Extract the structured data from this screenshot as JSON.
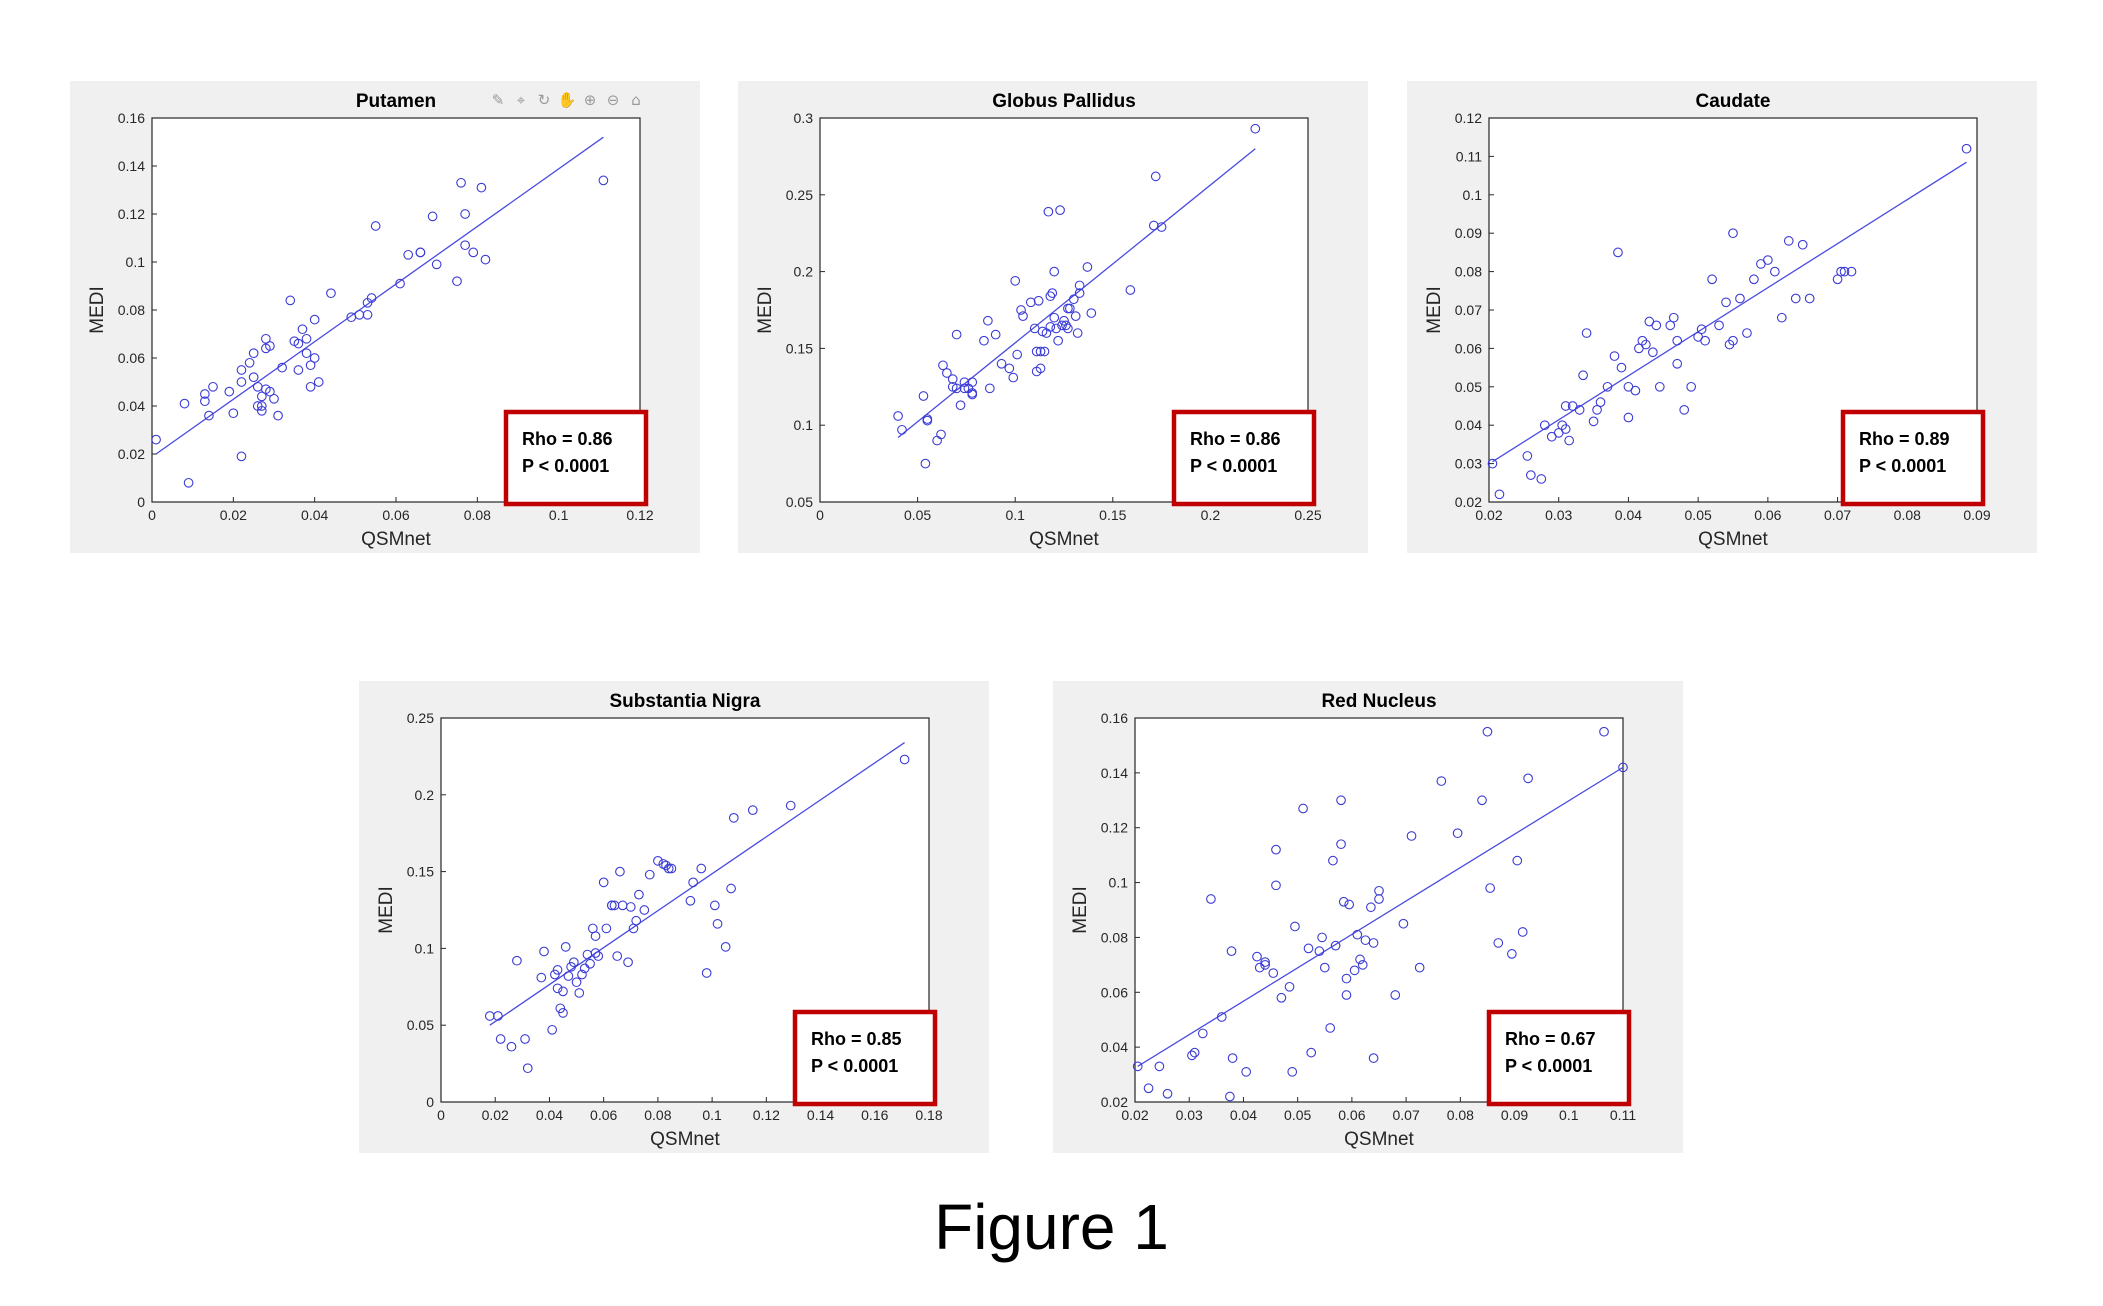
{
  "colors": {
    "points": "#3b3bd6",
    "fit_line": "#4a4ae0",
    "stat_box_border": "#c00000",
    "panel_background": "#f0f0f0"
  },
  "figure_caption": "Figure 1",
  "toolbar_icons": [
    "brush-icon",
    "data-cursor-icon",
    "rotate-icon",
    "pan-icon",
    "zoom-in-icon",
    "zoom-out-icon",
    "home-icon"
  ],
  "chart_data": [
    {
      "type": "scatter",
      "title": "Putamen",
      "xlabel": "QSMnet",
      "ylabel": "MEDI",
      "xlim": [
        0,
        0.12
      ],
      "ylim": [
        0,
        0.16
      ],
      "xticks": [
        "0",
        "0.02",
        "0.04",
        "0.06",
        "0.08",
        "0.1",
        "0.12"
      ],
      "yticks": [
        "0",
        "0.02",
        "0.04",
        "0.06",
        "0.08",
        "0.1",
        "0.12",
        "0.14",
        "0.16"
      ],
      "grid": false,
      "stats": {
        "rho": "Rho = 0.86",
        "p": "P < 0.0001"
      },
      "fit": {
        "x": [
          0.001,
          0.111
        ],
        "y": [
          0.02,
          0.152
        ]
      },
      "points": {
        "x": [
          0.001,
          0.009,
          0.008,
          0.013,
          0.013,
          0.015,
          0.014,
          0.019,
          0.02,
          0.022,
          0.022,
          0.024,
          0.025,
          0.025,
          0.026,
          0.026,
          0.027,
          0.027,
          0.027,
          0.028,
          0.028,
          0.028,
          0.029,
          0.029,
          0.03,
          0.031,
          0.022,
          0.032,
          0.034,
          0.035,
          0.036,
          0.036,
          0.037,
          0.038,
          0.038,
          0.039,
          0.039,
          0.04,
          0.04,
          0.041,
          0.044,
          0.049,
          0.051,
          0.053,
          0.053,
          0.054,
          0.055,
          0.061,
          0.063,
          0.066,
          0.066,
          0.069,
          0.07,
          0.075,
          0.076,
          0.077,
          0.077,
          0.079,
          0.081,
          0.082,
          0.111
        ],
        "y": [
          0.026,
          0.008,
          0.041,
          0.042,
          0.045,
          0.048,
          0.036,
          0.046,
          0.037,
          0.05,
          0.055,
          0.058,
          0.062,
          0.052,
          0.048,
          0.04,
          0.038,
          0.04,
          0.044,
          0.047,
          0.064,
          0.068,
          0.065,
          0.046,
          0.043,
          0.036,
          0.019,
          0.056,
          0.084,
          0.067,
          0.066,
          0.055,
          0.072,
          0.062,
          0.068,
          0.057,
          0.048,
          0.076,
          0.06,
          0.05,
          0.087,
          0.077,
          0.078,
          0.083,
          0.078,
          0.085,
          0.115,
          0.091,
          0.103,
          0.104,
          0.104,
          0.119,
          0.099,
          0.092,
          0.133,
          0.12,
          0.107,
          0.104,
          0.131,
          0.101,
          0.134
        ]
      }
    },
    {
      "type": "scatter",
      "title": "Globus Pallidus",
      "xlabel": "QSMnet",
      "ylabel": "MEDI",
      "xlim": [
        0,
        0.25
      ],
      "ylim": [
        0.05,
        0.3
      ],
      "xticks": [
        "0",
        "0.05",
        "0.1",
        "0.15",
        "0.2",
        "0.25"
      ],
      "yticks": [
        "0.05",
        "0.1",
        "0.15",
        "0.2",
        "0.25",
        "0.3"
      ],
      "grid": false,
      "stats": {
        "rho": "Rho = 0.86",
        "p": "P < 0.0001"
      },
      "fit": {
        "x": [
          0.04,
          0.223
        ],
        "y": [
          0.092,
          0.28
        ]
      },
      "points": {
        "x": [
          0.04,
          0.042,
          0.053,
          0.055,
          0.055,
          0.054,
          0.06,
          0.062,
          0.063,
          0.065,
          0.068,
          0.068,
          0.07,
          0.07,
          0.072,
          0.074,
          0.074,
          0.076,
          0.078,
          0.078,
          0.078,
          0.084,
          0.086,
          0.087,
          0.09,
          0.093,
          0.097,
          0.099,
          0.1,
          0.101,
          0.103,
          0.104,
          0.108,
          0.11,
          0.111,
          0.111,
          0.112,
          0.113,
          0.113,
          0.114,
          0.115,
          0.116,
          0.117,
          0.118,
          0.118,
          0.119,
          0.12,
          0.12,
          0.121,
          0.122,
          0.123,
          0.124,
          0.125,
          0.126,
          0.127,
          0.127,
          0.128,
          0.13,
          0.131,
          0.132,
          0.133,
          0.133,
          0.137,
          0.139,
          0.159,
          0.171,
          0.172,
          0.175,
          0.223
        ],
        "y": [
          0.106,
          0.097,
          0.119,
          0.104,
          0.103,
          0.075,
          0.09,
          0.094,
          0.139,
          0.134,
          0.125,
          0.13,
          0.124,
          0.159,
          0.113,
          0.128,
          0.124,
          0.124,
          0.128,
          0.12,
          0.121,
          0.155,
          0.168,
          0.124,
          0.159,
          0.14,
          0.137,
          0.131,
          0.194,
          0.146,
          0.175,
          0.171,
          0.18,
          0.163,
          0.135,
          0.148,
          0.181,
          0.148,
          0.137,
          0.161,
          0.148,
          0.16,
          0.239,
          0.184,
          0.164,
          0.186,
          0.17,
          0.2,
          0.163,
          0.155,
          0.24,
          0.165,
          0.168,
          0.165,
          0.176,
          0.163,
          0.176,
          0.182,
          0.171,
          0.16,
          0.186,
          0.191,
          0.203,
          0.173,
          0.188,
          0.23,
          0.262,
          0.229,
          0.293
        ]
      }
    },
    {
      "type": "scatter",
      "title": "Caudate",
      "xlabel": "QSMnet",
      "ylabel": "MEDI",
      "xlim": [
        0.02,
        0.09
      ],
      "ylim": [
        0.02,
        0.12
      ],
      "xticks": [
        "0.02",
        "0.03",
        "0.04",
        "0.05",
        "0.06",
        "0.07",
        "0.08",
        "0.09"
      ],
      "yticks": [
        "0.02",
        "0.03",
        "0.04",
        "0.05",
        "0.06",
        "0.07",
        "0.08",
        "0.09",
        "0.1",
        "0.11",
        "0.12"
      ],
      "grid": false,
      "stats": {
        "rho": "Rho = 0.89",
        "p": "P < 0.0001"
      },
      "fit": {
        "x": [
          0.0205,
          0.0885
        ],
        "y": [
          0.0305,
          0.1085
        ]
      },
      "points": {
        "x": [
          0.0205,
          0.0215,
          0.0255,
          0.026,
          0.0275,
          0.028,
          0.029,
          0.03,
          0.0305,
          0.031,
          0.031,
          0.0315,
          0.032,
          0.033,
          0.0335,
          0.034,
          0.035,
          0.0355,
          0.036,
          0.037,
          0.038,
          0.0385,
          0.039,
          0.04,
          0.04,
          0.041,
          0.0415,
          0.042,
          0.0425,
          0.043,
          0.0435,
          0.044,
          0.0445,
          0.046,
          0.0465,
          0.047,
          0.047,
          0.048,
          0.049,
          0.05,
          0.0505,
          0.051,
          0.052,
          0.053,
          0.054,
          0.0545,
          0.055,
          0.055,
          0.056,
          0.057,
          0.058,
          0.059,
          0.06,
          0.061,
          0.062,
          0.063,
          0.064,
          0.065,
          0.066,
          0.07,
          0.0705,
          0.071,
          0.072,
          0.0885
        ],
        "y": [
          0.03,
          0.022,
          0.032,
          0.027,
          0.026,
          0.04,
          0.037,
          0.038,
          0.04,
          0.039,
          0.045,
          0.036,
          0.045,
          0.044,
          0.053,
          0.064,
          0.041,
          0.044,
          0.046,
          0.05,
          0.058,
          0.085,
          0.055,
          0.05,
          0.042,
          0.049,
          0.06,
          0.062,
          0.061,
          0.067,
          0.059,
          0.066,
          0.05,
          0.066,
          0.068,
          0.056,
          0.062,
          0.044,
          0.05,
          0.063,
          0.065,
          0.062,
          0.078,
          0.066,
          0.072,
          0.061,
          0.062,
          0.09,
          0.073,
          0.064,
          0.078,
          0.082,
          0.083,
          0.08,
          0.068,
          0.088,
          0.073,
          0.087,
          0.073,
          0.078,
          0.08,
          0.08,
          0.08,
          0.112
        ]
      }
    },
    {
      "type": "scatter",
      "title": "Substantia Nigra",
      "xlabel": "QSMnet",
      "ylabel": "MEDI",
      "xlim": [
        0,
        0.18
      ],
      "ylim": [
        0,
        0.25
      ],
      "xticks": [
        "0",
        "0.02",
        "0.04",
        "0.06",
        "0.08",
        "0.1",
        "0.12",
        "0.14",
        "0.16",
        "0.18"
      ],
      "yticks": [
        "0",
        "0.05",
        "0.1",
        "0.15",
        "0.2",
        "0.25"
      ],
      "grid": false,
      "stats": {
        "rho": "Rho = 0.85",
        "p": "P < 0.0001"
      },
      "fit": {
        "x": [
          0.018,
          0.171
        ],
        "y": [
          0.05,
          0.234
        ]
      },
      "points": {
        "x": [
          0.018,
          0.021,
          0.022,
          0.026,
          0.028,
          0.031,
          0.032,
          0.037,
          0.038,
          0.041,
          0.042,
          0.043,
          0.043,
          0.044,
          0.045,
          0.045,
          0.046,
          0.047,
          0.048,
          0.049,
          0.05,
          0.051,
          0.052,
          0.053,
          0.054,
          0.055,
          0.056,
          0.057,
          0.057,
          0.058,
          0.06,
          0.061,
          0.063,
          0.063,
          0.064,
          0.065,
          0.066,
          0.067,
          0.069,
          0.07,
          0.071,
          0.072,
          0.073,
          0.075,
          0.077,
          0.08,
          0.082,
          0.083,
          0.084,
          0.085,
          0.092,
          0.093,
          0.096,
          0.098,
          0.101,
          0.102,
          0.105,
          0.107,
          0.108,
          0.115,
          0.129,
          0.171
        ],
        "y": [
          0.056,
          0.056,
          0.041,
          0.036,
          0.092,
          0.041,
          0.022,
          0.081,
          0.098,
          0.047,
          0.083,
          0.074,
          0.086,
          0.061,
          0.058,
          0.072,
          0.101,
          0.082,
          0.088,
          0.091,
          0.078,
          0.071,
          0.083,
          0.087,
          0.096,
          0.09,
          0.113,
          0.108,
          0.097,
          0.095,
          0.143,
          0.113,
          0.128,
          0.128,
          0.128,
          0.095,
          0.15,
          0.128,
          0.091,
          0.127,
          0.113,
          0.118,
          0.135,
          0.125,
          0.148,
          0.157,
          0.155,
          0.154,
          0.152,
          0.152,
          0.131,
          0.143,
          0.152,
          0.084,
          0.128,
          0.116,
          0.101,
          0.139,
          0.185,
          0.19,
          0.193,
          0.223
        ]
      }
    },
    {
      "type": "scatter",
      "title": "Red Nucleus",
      "xlabel": "QSMnet",
      "ylabel": "MEDI",
      "xlim": [
        0.02,
        0.11
      ],
      "ylim": [
        0.02,
        0.16
      ],
      "xticks": [
        "0.02",
        "0.03",
        "0.04",
        "0.05",
        "0.06",
        "0.07",
        "0.08",
        "0.09",
        "0.1",
        "0.11"
      ],
      "yticks": [
        "0.02",
        "0.04",
        "0.06",
        "0.08",
        "0.1",
        "0.12",
        "0.14",
        "0.16"
      ],
      "grid": false,
      "stats": {
        "rho": "Rho = 0.67",
        "p": "P < 0.0001"
      },
      "fit": {
        "x": [
          0.0205,
          0.11
        ],
        "y": [
          0.033,
          0.142
        ]
      },
      "points": {
        "x": [
          0.0205,
          0.0225,
          0.0245,
          0.026,
          0.0305,
          0.031,
          0.0325,
          0.034,
          0.036,
          0.0375,
          0.0378,
          0.038,
          0.0405,
          0.0425,
          0.043,
          0.044,
          0.044,
          0.0455,
          0.046,
          0.046,
          0.047,
          0.0485,
          0.049,
          0.0495,
          0.051,
          0.052,
          0.0525,
          0.054,
          0.0545,
          0.055,
          0.056,
          0.0565,
          0.057,
          0.058,
          0.058,
          0.0585,
          0.059,
          0.059,
          0.0595,
          0.0605,
          0.061,
          0.0615,
          0.062,
          0.0625,
          0.0635,
          0.064,
          0.064,
          0.065,
          0.065,
          0.068,
          0.0695,
          0.071,
          0.0725,
          0.0765,
          0.0795,
          0.084,
          0.085,
          0.0855,
          0.087,
          0.0895,
          0.0905,
          0.0915,
          0.0925,
          0.1065,
          0.11
        ],
        "y": [
          0.033,
          0.025,
          0.033,
          0.023,
          0.037,
          0.038,
          0.045,
          0.094,
          0.051,
          0.022,
          0.075,
          0.036,
          0.031,
          0.073,
          0.069,
          0.071,
          0.07,
          0.067,
          0.099,
          0.112,
          0.058,
          0.062,
          0.031,
          0.084,
          0.127,
          0.076,
          0.038,
          0.075,
          0.08,
          0.069,
          0.047,
          0.108,
          0.077,
          0.114,
          0.13,
          0.093,
          0.059,
          0.065,
          0.092,
          0.068,
          0.081,
          0.072,
          0.07,
          0.079,
          0.091,
          0.036,
          0.078,
          0.094,
          0.097,
          0.059,
          0.085,
          0.117,
          0.069,
          0.137,
          0.118,
          0.13,
          0.155,
          0.098,
          0.078,
          0.074,
          0.108,
          0.082,
          0.138,
          0.155,
          0.142
        ]
      }
    }
  ]
}
